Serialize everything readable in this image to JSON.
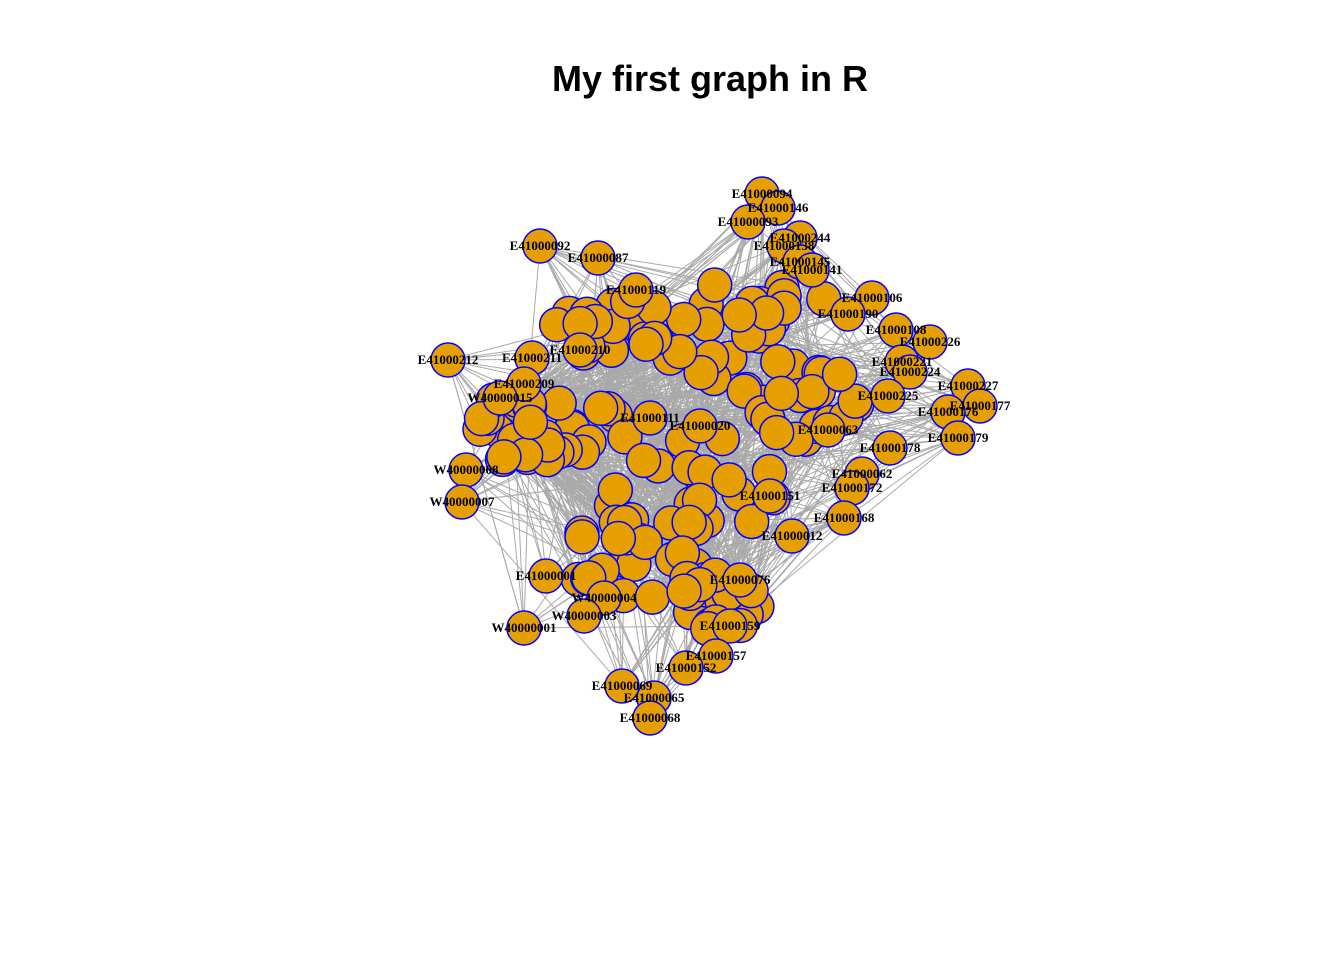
{
  "title": "My first graph in R",
  "style": {
    "node_fill": "#E69F00",
    "node_stroke": "#0000FF",
    "edge_color": "#A9A9A9",
    "label_color": "#000000"
  },
  "nodes": [
    {
      "id": "E41000094",
      "label": "E41000094"
    },
    {
      "id": "E41000146",
      "label": "E41000146"
    },
    {
      "id": "E41000093",
      "label": "E41000093"
    },
    {
      "id": "E41000244",
      "label": "E41000244"
    },
    {
      "id": "E41000138",
      "label": "E41000138"
    },
    {
      "id": "E41000092",
      "label": "E41000092"
    },
    {
      "id": "E41000087",
      "label": "E41000087"
    },
    {
      "id": "E41000145",
      "label": "E41000145"
    },
    {
      "id": "E41000141",
      "label": "E41000141"
    },
    {
      "id": "E41000119",
      "label": "E41000119"
    },
    {
      "id": "E41000106",
      "label": "E41000106"
    },
    {
      "id": "E41000190",
      "label": "E41000190"
    },
    {
      "id": "E41000108",
      "label": "E41000108"
    },
    {
      "id": "E41000226",
      "label": "E41000226"
    },
    {
      "id": "E41000210",
      "label": "E41000210"
    },
    {
      "id": "E41000212",
      "label": "E41000212"
    },
    {
      "id": "E41000211",
      "label": "E41000211"
    },
    {
      "id": "E41000221",
      "label": "E41000221"
    },
    {
      "id": "E41000224",
      "label": "E41000224"
    },
    {
      "id": "E41000209",
      "label": "E41000209"
    },
    {
      "id": "E41000227",
      "label": "E41000227"
    },
    {
      "id": "W40000015",
      "label": "W40000015"
    },
    {
      "id": "E41000225",
      "label": "E41000225"
    },
    {
      "id": "E41000177",
      "label": "E41000177"
    },
    {
      "id": "E41000176",
      "label": "E41000176"
    },
    {
      "id": "E41000179",
      "label": "E41000179"
    },
    {
      "id": "E41000178",
      "label": "E41000178"
    },
    {
      "id": "E41000063",
      "label": "E41000063"
    },
    {
      "id": "E41000062",
      "label": "E41000062"
    },
    {
      "id": "W40000008",
      "label": "W40000008"
    },
    {
      "id": "E41000172",
      "label": "E41000172"
    },
    {
      "id": "W40000007",
      "label": "W40000007"
    },
    {
      "id": "E41000151",
      "label": "E41000151"
    },
    {
      "id": "E41000168",
      "label": "E41000168"
    },
    {
      "id": "E41000012",
      "label": "E41000012"
    },
    {
      "id": "E41000001",
      "label": "E41000001"
    },
    {
      "id": "W40000004",
      "label": "W40000004"
    },
    {
      "id": "W40000003",
      "label": "W40000003"
    },
    {
      "id": "W40000001",
      "label": "W40000001"
    },
    {
      "id": "E41000159",
      "label": "E41000159"
    },
    {
      "id": "E41000157",
      "label": "E41000157"
    },
    {
      "id": "E41000152",
      "label": "E41000152"
    },
    {
      "id": "E41000069",
      "label": "E41000069"
    },
    {
      "id": "E41000065",
      "label": "E41000065"
    },
    {
      "id": "E41000068",
      "label": "E41000068"
    },
    {
      "id": "E41000076",
      "label": "E41000076"
    },
    {
      "id": "E41000111",
      "label": "E41000111"
    },
    {
      "id": "E41000020",
      "label": "E41000020"
    }
  ]
}
